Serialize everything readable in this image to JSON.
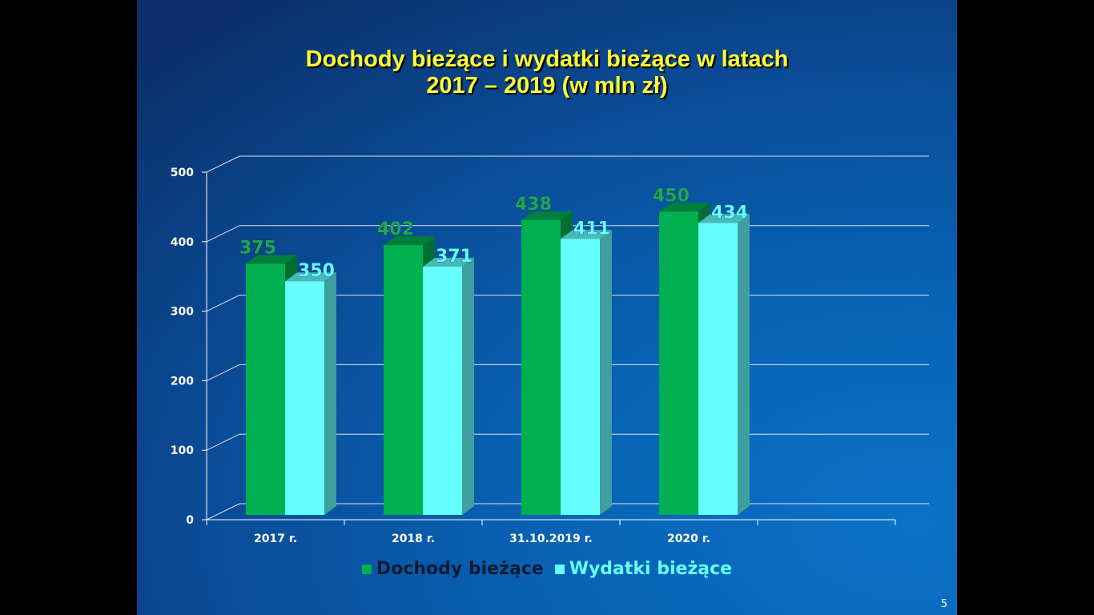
{
  "slide": {
    "page_number": "5"
  },
  "chart_data": {
    "type": "bar",
    "title_lines": [
      "Dochody bieżące i wydatki bieżące w latach",
      "2017 – 2019 (w mln zł)"
    ],
    "categories": [
      "2017 r.",
      "2018 r.",
      "31.10.2019 r.",
      "2020 r."
    ],
    "series": [
      {
        "name": "Dochody bieżące",
        "values": [
          375,
          402,
          438,
          450
        ],
        "color": "#00b050",
        "label_color": "#1fa84f"
      },
      {
        "name": "Wydatki bieżące",
        "values": [
          350,
          371,
          411,
          434
        ],
        "color": "#66ffff",
        "label_color": "#66ffff"
      }
    ],
    "yticks": [
      0,
      100,
      200,
      300,
      400,
      500
    ],
    "ylim": [
      0,
      500
    ],
    "grid": true,
    "legend_position": "bottom",
    "style": "3d-clustered-column",
    "colors": {
      "title": "#ffff33",
      "text": "#ffffff",
      "grid": "#ffffff"
    }
  }
}
